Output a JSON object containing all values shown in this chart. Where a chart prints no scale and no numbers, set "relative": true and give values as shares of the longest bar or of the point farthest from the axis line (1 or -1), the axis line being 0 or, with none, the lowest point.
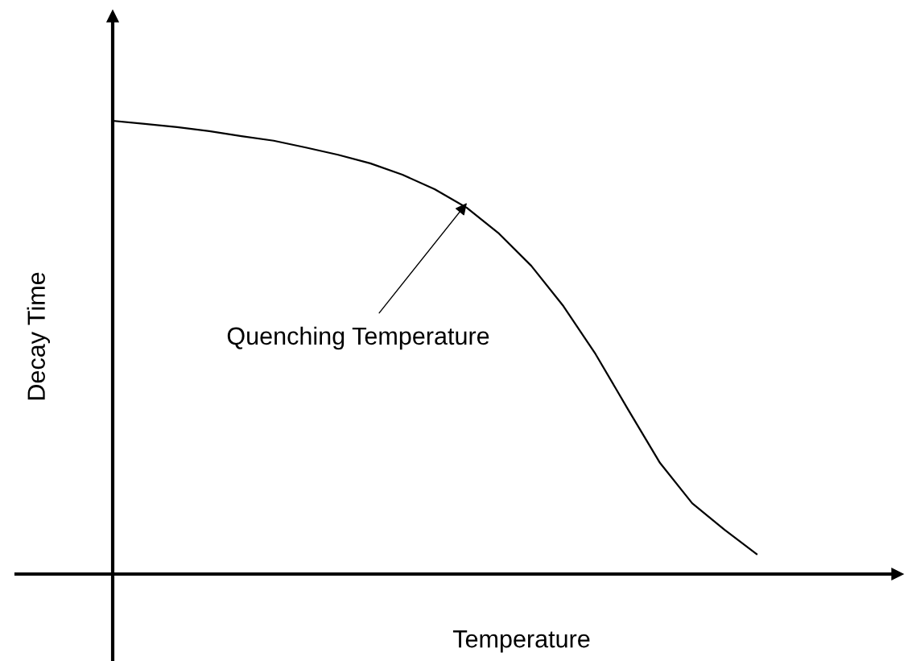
{
  "chart_data": {
    "type": "line",
    "relative": true,
    "xlabel": "Temperature",
    "ylabel": "Decay Time",
    "categories": [
      null,
      null,
      null,
      null,
      null,
      null,
      null,
      null,
      null,
      null,
      null,
      null,
      null,
      null,
      null,
      null,
      null,
      null,
      null,
      null,
      null
    ],
    "series": [
      {
        "color": "#000000",
        "values": [
          1.0,
          0.993,
          0.986,
          0.977,
          0.966,
          0.956,
          0.941,
          0.925,
          0.906,
          0.881,
          0.849,
          0.808,
          0.751,
          0.68,
          0.591,
          0.485,
          0.364,
          0.245,
          0.156,
          0.098,
          0.044
        ]
      }
    ],
    "annotations": [
      "Quenching Temperature"
    ],
    "marker": "none",
    "line_style": "solid",
    "legend": false
  }
}
